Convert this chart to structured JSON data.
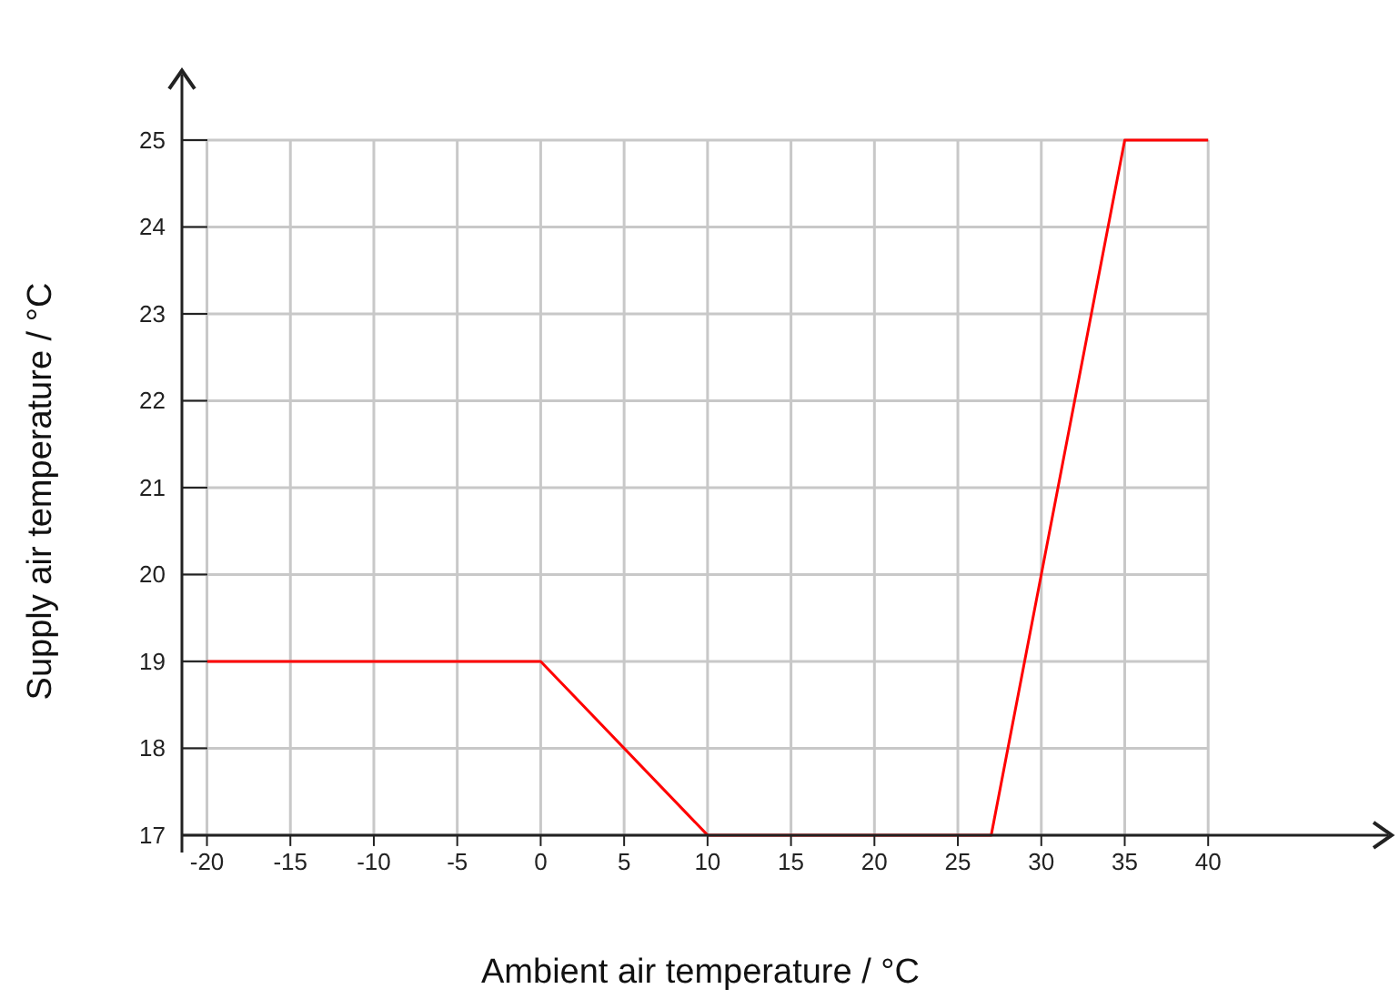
{
  "chart_data": {
    "type": "line",
    "xlabel": "Ambient air  temperature / °C",
    "ylabel": "Supply air temperature / °C",
    "x": [
      -20,
      0,
      10,
      27,
      35,
      40
    ],
    "series": [
      {
        "color": "#ff0000",
        "values": [
          19,
          19,
          17,
          17,
          25,
          25
        ]
      }
    ],
    "xlim": [
      -21.5,
      51
    ],
    "ylim": [
      16.8,
      25.8
    ],
    "xticks": [
      -20,
      -15,
      -10,
      -5,
      0,
      5,
      10,
      15,
      20,
      25,
      30,
      35,
      40
    ],
    "yticks": [
      17,
      18,
      19,
      20,
      21,
      22,
      23,
      24,
      25
    ],
    "grid": true,
    "marker": "none",
    "line_style": "solid"
  }
}
